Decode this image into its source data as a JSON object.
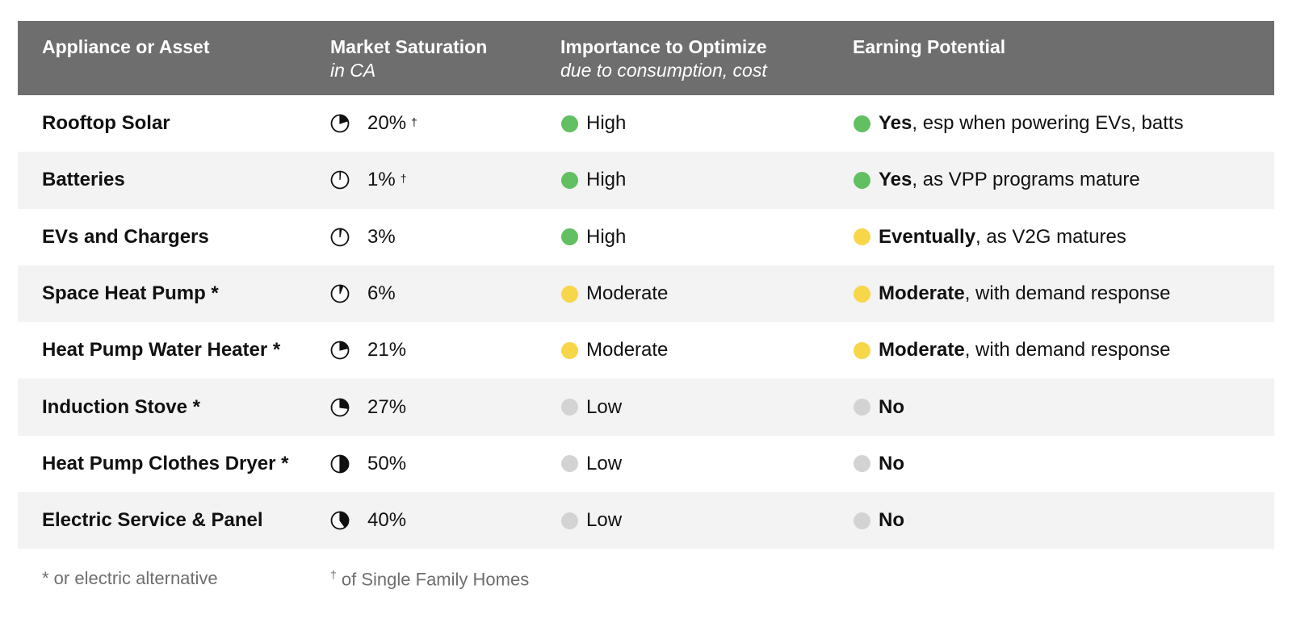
{
  "colors": {
    "high": "#62bf62",
    "moderate": "#f7d64a",
    "low": "#d3d3d3",
    "header_bg": "#6e6e6e"
  },
  "header": {
    "col1": "Appliance or Asset",
    "col2_main": "Market Saturation",
    "col2_sub": "in CA",
    "col3_main": "Importance to Optimize",
    "col3_sub": "due to consumption, cost",
    "col4_main": "Earning Potential"
  },
  "rows": [
    {
      "name": "Rooftop Solar",
      "saturation": "20%",
      "saturation_fraction": 0.2,
      "dagger": "†",
      "importance": "High",
      "importance_level": "high",
      "earning_strong": "Yes",
      "earning_rest": ", esp when powering EVs, batts",
      "earning_level": "high"
    },
    {
      "name": "Batteries",
      "saturation": "1%",
      "saturation_fraction": 0.01,
      "dagger": "†",
      "importance": "High",
      "importance_level": "high",
      "earning_strong": "Yes",
      "earning_rest": ", as VPP programs mature",
      "earning_level": "high"
    },
    {
      "name": "EVs and Chargers",
      "saturation": "3%",
      "saturation_fraction": 0.03,
      "dagger": "",
      "importance": "High",
      "importance_level": "high",
      "earning_strong": "Eventually",
      "earning_rest": ", as V2G matures",
      "earning_level": "moderate"
    },
    {
      "name": "Space Heat Pump *",
      "saturation": "6%",
      "saturation_fraction": 0.06,
      "dagger": "",
      "importance": "Moderate",
      "importance_level": "moderate",
      "earning_strong": "Moderate",
      "earning_rest": ", with demand response",
      "earning_level": "moderate"
    },
    {
      "name": "Heat Pump Water Heater *",
      "saturation": "21%",
      "saturation_fraction": 0.21,
      "dagger": "",
      "importance": "Moderate",
      "importance_level": "moderate",
      "earning_strong": "Moderate",
      "earning_rest": ", with demand response",
      "earning_level": "moderate"
    },
    {
      "name": "Induction Stove *",
      "saturation": "27%",
      "saturation_fraction": 0.27,
      "dagger": "",
      "importance": "Low",
      "importance_level": "low",
      "earning_strong": "No",
      "earning_rest": "",
      "earning_level": "low"
    },
    {
      "name": "Heat Pump Clothes Dryer *",
      "saturation": "50%",
      "saturation_fraction": 0.5,
      "dagger": "",
      "importance": "Low",
      "importance_level": "low",
      "earning_strong": "No",
      "earning_rest": "",
      "earning_level": "low"
    },
    {
      "name": "Electric Service & Panel",
      "saturation": "40%",
      "saturation_fraction": 0.4,
      "dagger": "",
      "importance": "Low",
      "importance_level": "low",
      "earning_strong": "No",
      "earning_rest": "",
      "earning_level": "low"
    }
  ],
  "footnotes": {
    "asterisk": "* or electric alternative",
    "dagger_symbol": "†",
    "dagger_text": " of Single Family Homes"
  }
}
